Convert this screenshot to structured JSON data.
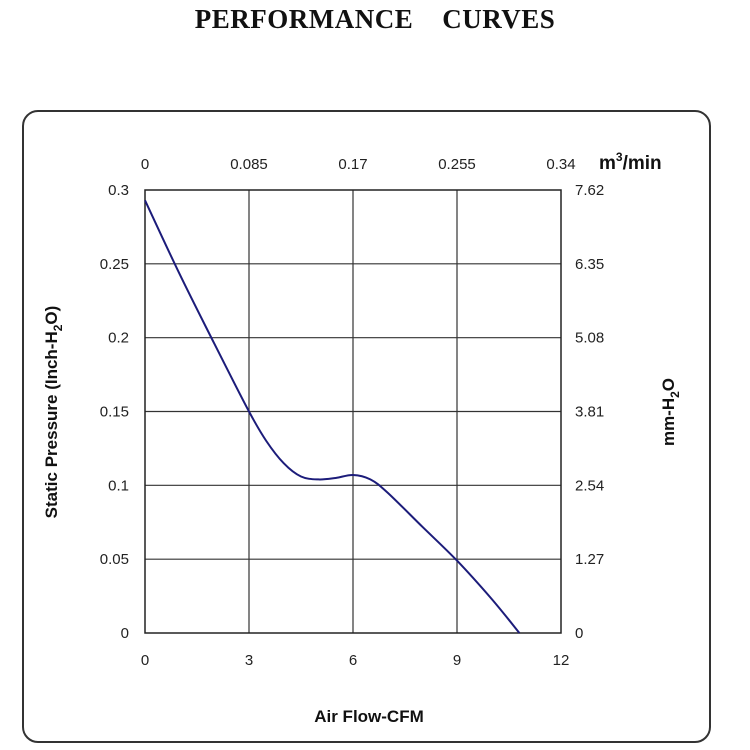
{
  "title": "PERFORMANCE    CURVES",
  "chart_data": {
    "type": "line",
    "title": "PERFORMANCE    CURVES",
    "xlabel": "Air Flow-CFM",
    "ylabel": "Static Pressure (Inch-H2O)",
    "ylabel_main": "Static Pressure (Inch-H",
    "ylabel_sub": "2",
    "ylabel_end": "O)",
    "y2label_main": "mm-H",
    "y2label_sub": "2",
    "y2label_end": "O",
    "x2label_main": "m",
    "x2label_sup": "3",
    "x2label_end": "/min",
    "xlim": [
      0,
      12
    ],
    "ylim": [
      0,
      0.3
    ],
    "grid": true,
    "x_ticks": [
      "0",
      "3",
      "6",
      "9",
      "12"
    ],
    "x_tick_values": [
      0,
      3,
      6,
      9,
      12
    ],
    "x2_ticks": [
      "0",
      "0.085",
      "0.17",
      "0.255",
      "0.34"
    ],
    "y_ticks": [
      "0",
      "0.05",
      "0.1",
      "0.15",
      "0.2",
      "0.25",
      "0.3"
    ],
    "y_tick_values": [
      0,
      0.05,
      0.1,
      0.15,
      0.2,
      0.25,
      0.3
    ],
    "y2_ticks": [
      "0",
      "1.27",
      "2.54",
      "3.81",
      "5.08",
      "6.35",
      "7.62"
    ],
    "line_color": "#1c1c7a",
    "series": [
      {
        "name": "Static Pressure",
        "x": [
          0,
          1,
          2,
          3,
          3.5,
          4,
          4.5,
          5,
          5.5,
          6,
          6.5,
          7,
          8,
          9,
          10,
          10.8
        ],
        "y": [
          0.293,
          0.243,
          0.196,
          0.15,
          0.13,
          0.115,
          0.106,
          0.104,
          0.105,
          0.107,
          0.104,
          0.095,
          0.072,
          0.049,
          0.023,
          0.0
        ]
      }
    ]
  }
}
